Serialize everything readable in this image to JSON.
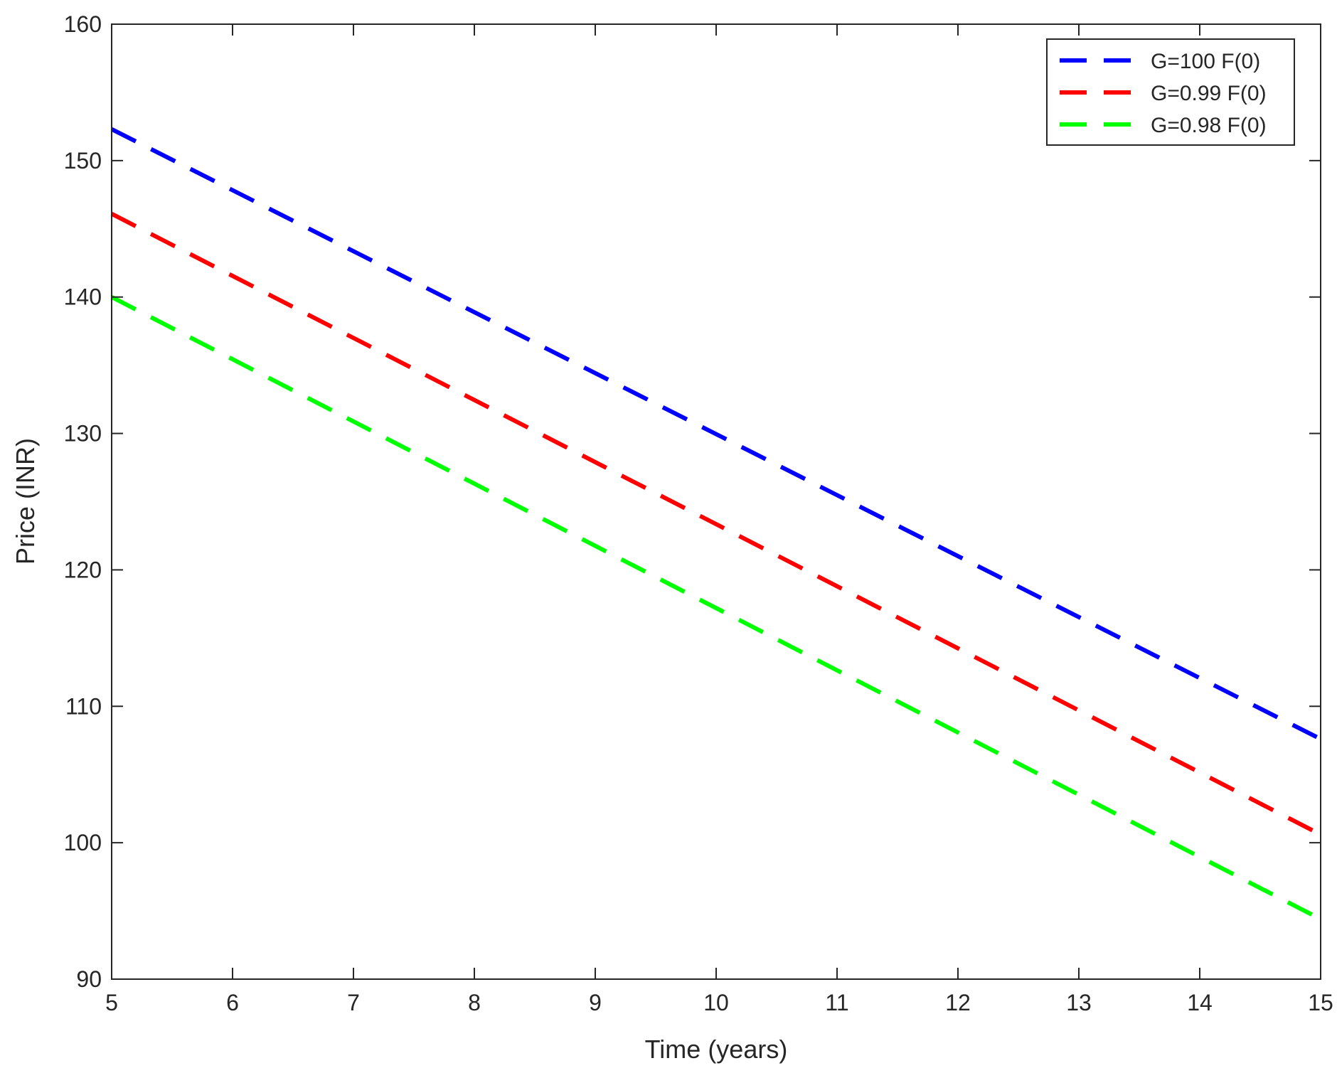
{
  "chart_data": {
    "type": "line",
    "title": "",
    "xlabel": "Time (years)",
    "ylabel": "Price (INR)",
    "xlim": [
      5,
      15
    ],
    "ylim": [
      90,
      160
    ],
    "xticks": [
      5,
      6,
      7,
      8,
      9,
      10,
      11,
      12,
      13,
      14,
      15
    ],
    "yticks": [
      90,
      100,
      110,
      120,
      130,
      140,
      150,
      160
    ],
    "grid": false,
    "legend_position": "top-right",
    "line_style": "dashed",
    "series": [
      {
        "name": "G=100 F(0)",
        "color": "#0000ff",
        "x": [
          5,
          15
        ],
        "y": [
          152.3,
          107.6
        ]
      },
      {
        "name": "G=0.99 F(0)",
        "color": "#ff0000",
        "x": [
          5,
          15
        ],
        "y": [
          146.1,
          100.6
        ]
      },
      {
        "name": "G=0.98 F(0)",
        "color": "#00ff00",
        "x": [
          5,
          15
        ],
        "y": [
          140.0,
          94.4
        ]
      }
    ]
  }
}
